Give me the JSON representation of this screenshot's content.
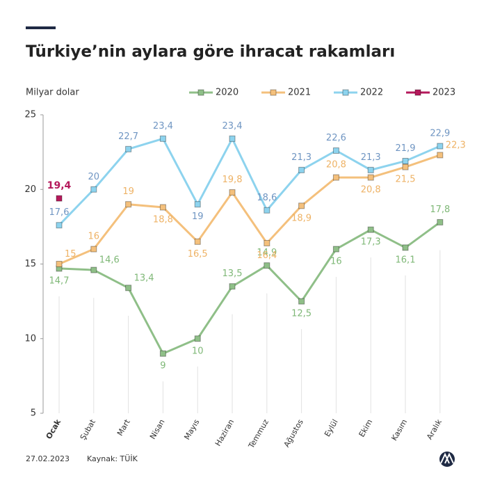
{
  "chart_data": {
    "type": "line",
    "title": "Türkiye’nin aylara göre ihracat rakamları",
    "y_label": "Milyar dolar",
    "categories": [
      "Ocak",
      "Şubat",
      "Mart",
      "Nisan",
      "Mayıs",
      "Haziran",
      "Temmuz",
      "Ağustos",
      "Eylül",
      "Ekim",
      "Kasım",
      "Aralık"
    ],
    "ylim": [
      5,
      25
    ],
    "yticks": [
      5,
      10,
      15,
      20,
      25
    ],
    "series": [
      {
        "name": "2020",
        "color": "#8fbf88",
        "values": [
          14.7,
          14.6,
          13.4,
          9,
          10,
          13.5,
          14.9,
          12.5,
          16,
          17.3,
          16.1,
          17.8
        ],
        "value_labels": [
          "14,7",
          "14,6",
          "13,4",
          "9",
          "10",
          "13,5",
          "14,9",
          "12,5",
          "16",
          "17,3",
          "16,1",
          "17,8"
        ]
      },
      {
        "name": "2021",
        "color": "#f4c07c",
        "values": [
          15,
          16,
          19,
          18.8,
          16.5,
          19.8,
          16.4,
          18.9,
          20.8,
          20.8,
          21.5,
          22.3
        ],
        "value_labels": [
          "15",
          "16",
          "19",
          "18,8",
          "16,5",
          "19,8",
          "16,4",
          "18,9",
          "20,8",
          "20,8",
          "21,5",
          "22,3"
        ]
      },
      {
        "name": "2022",
        "color": "#8dd3ee",
        "values": [
          17.6,
          20,
          22.7,
          23.4,
          19,
          23.4,
          18.6,
          21.3,
          22.6,
          21.3,
          21.9,
          22.9
        ],
        "value_labels": [
          "17,6",
          "20",
          "22,7",
          "23,4",
          "19",
          "23,4",
          "18,6",
          "21,3",
          "22,6",
          "21,3",
          "21,9",
          "22,9"
        ]
      },
      {
        "name": "2023",
        "color": "#b5195b",
        "values": [
          19.4,
          null,
          null,
          null,
          null,
          null,
          null,
          null,
          null,
          null,
          null,
          null
        ],
        "value_labels": [
          "19,4",
          null,
          null,
          null,
          null,
          null,
          null,
          null,
          null,
          null,
          null,
          null
        ]
      }
    ]
  },
  "footer": {
    "date": "27.02.2023",
    "source": "Kaynak: TÜİK"
  }
}
